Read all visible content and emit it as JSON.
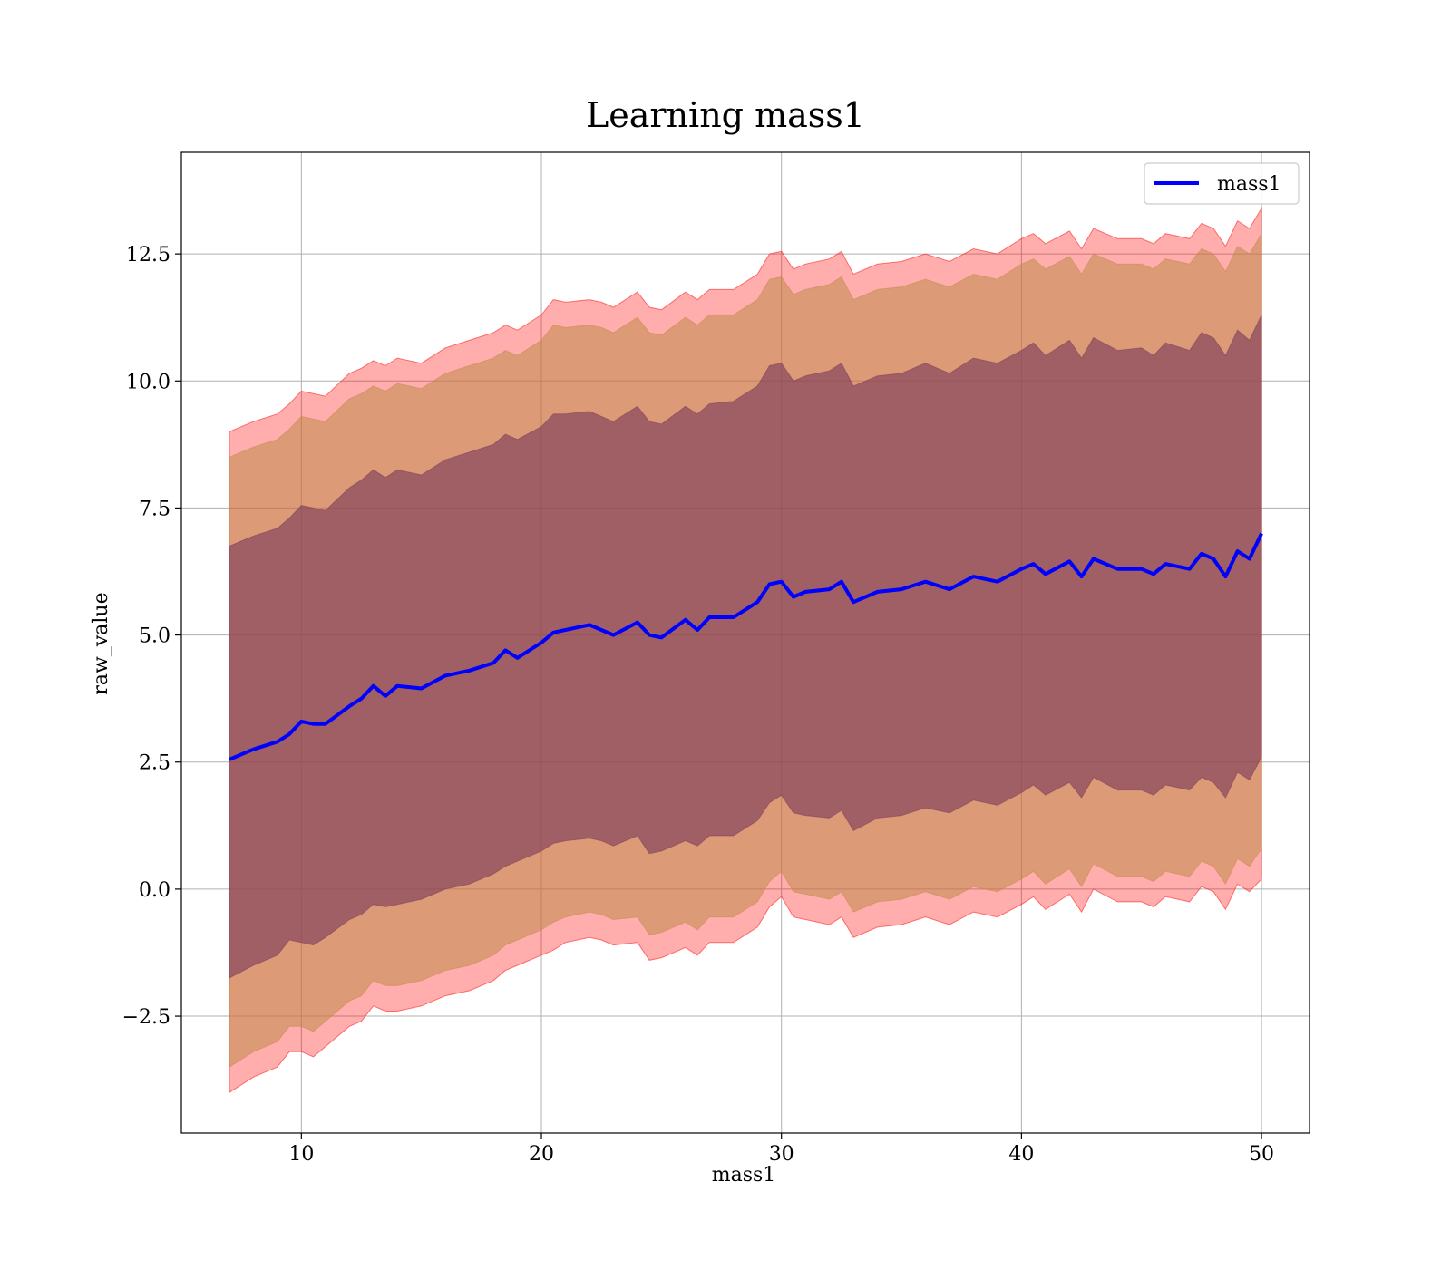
{
  "chart_data": {
    "type": "line",
    "title": "Learning mass1",
    "xlabel": "mass1",
    "ylabel": "raw_value",
    "xlim": [
      5,
      52
    ],
    "ylim": [
      -4.8,
      14.5
    ],
    "x_ticks": [
      10,
      20,
      30,
      40,
      50
    ],
    "x_tick_labels": [
      "10",
      "20",
      "30",
      "40",
      "50"
    ],
    "y_ticks": [
      -2.5,
      0.0,
      2.5,
      5.0,
      7.5,
      10.0,
      12.5
    ],
    "y_tick_labels": [
      "−2.5",
      "0.0",
      "2.5",
      "5.0",
      "7.5",
      "10.0",
      "12.5"
    ],
    "grid": true,
    "legend": {
      "placement": "upper right",
      "entries": [
        "mass1"
      ]
    },
    "x": [
      7,
      8,
      9,
      9.5,
      10,
      10.5,
      11,
      12,
      12.5,
      13,
      13.5,
      14,
      15,
      16,
      17,
      18,
      18.5,
      19,
      20,
      20.5,
      21,
      22,
      22.5,
      23,
      24,
      24.5,
      25,
      26,
      26.5,
      27,
      28,
      29,
      29.5,
      30,
      30.5,
      31,
      32,
      32.5,
      33,
      34,
      35,
      36,
      37,
      38,
      39,
      40,
      40.5,
      41,
      42,
      42.5,
      43,
      44,
      45,
      45.5,
      46,
      47,
      47.5,
      48,
      48.5,
      49,
      49.5,
      50
    ],
    "series": [
      {
        "name": "mass1",
        "color": "#0000ff",
        "values": [
          2.55,
          2.75,
          2.9,
          3.05,
          3.3,
          3.25,
          3.25,
          3.6,
          3.75,
          4.0,
          3.8,
          4.0,
          3.95,
          4.2,
          4.3,
          4.45,
          4.7,
          4.55,
          4.85,
          5.05,
          5.1,
          5.2,
          5.1,
          5.0,
          5.25,
          5.0,
          4.95,
          5.3,
          5.1,
          5.35,
          5.35,
          5.65,
          6.0,
          6.05,
          5.75,
          5.85,
          5.9,
          6.05,
          5.65,
          5.85,
          5.9,
          6.05,
          5.9,
          6.15,
          6.05,
          6.3,
          6.4,
          6.2,
          6.45,
          6.15,
          6.5,
          6.3,
          6.3,
          6.2,
          6.4,
          6.3,
          6.6,
          6.5,
          6.15,
          6.65,
          6.5,
          7.0
        ]
      }
    ],
    "bands": [
      {
        "name": "outer",
        "color": "#ff0000",
        "opacity": 0.32,
        "lower": [
          -4.0,
          -3.7,
          -3.5,
          -3.2,
          -3.2,
          -3.3,
          -3.1,
          -2.7,
          -2.6,
          -2.3,
          -2.4,
          -2.4,
          -2.3,
          -2.1,
          -2.0,
          -1.8,
          -1.6,
          -1.5,
          -1.3,
          -1.2,
          -1.05,
          -0.95,
          -1.0,
          -1.1,
          -1.05,
          -1.4,
          -1.35,
          -1.15,
          -1.3,
          -1.05,
          -1.05,
          -0.75,
          -0.35,
          -0.15,
          -0.55,
          -0.6,
          -0.7,
          -0.55,
          -0.95,
          -0.75,
          -0.7,
          -0.55,
          -0.7,
          -0.45,
          -0.55,
          -0.3,
          -0.15,
          -0.4,
          -0.1,
          -0.45,
          0.0,
          -0.25,
          -0.25,
          -0.35,
          -0.15,
          -0.25,
          0.05,
          -0.05,
          -0.4,
          0.1,
          -0.05,
          0.2
        ],
        "upper": [
          9.0,
          9.2,
          9.35,
          9.55,
          9.8,
          9.75,
          9.7,
          10.15,
          10.25,
          10.4,
          10.3,
          10.45,
          10.35,
          10.65,
          10.8,
          10.95,
          11.1,
          11.0,
          11.3,
          11.6,
          11.55,
          11.6,
          11.55,
          11.45,
          11.75,
          11.45,
          11.4,
          11.75,
          11.6,
          11.8,
          11.8,
          12.1,
          12.5,
          12.55,
          12.2,
          12.3,
          12.4,
          12.55,
          12.1,
          12.3,
          12.35,
          12.5,
          12.35,
          12.6,
          12.5,
          12.8,
          12.9,
          12.7,
          12.95,
          12.6,
          13.0,
          12.8,
          12.8,
          12.7,
          12.9,
          12.8,
          13.1,
          13.0,
          12.65,
          13.15,
          13.0,
          13.4
        ]
      },
      {
        "name": "middle",
        "color": "#c18a4a",
        "opacity": 0.55,
        "lower": [
          -3.5,
          -3.2,
          -3.0,
          -2.7,
          -2.7,
          -2.8,
          -2.6,
          -2.2,
          -2.1,
          -1.8,
          -1.9,
          -1.9,
          -1.8,
          -1.6,
          -1.5,
          -1.3,
          -1.1,
          -1.0,
          -0.8,
          -0.65,
          -0.55,
          -0.45,
          -0.5,
          -0.6,
          -0.55,
          -0.9,
          -0.85,
          -0.65,
          -0.8,
          -0.55,
          -0.55,
          -0.25,
          0.15,
          0.35,
          -0.05,
          -0.1,
          -0.2,
          -0.05,
          -0.45,
          -0.25,
          -0.2,
          -0.05,
          -0.2,
          0.05,
          -0.05,
          0.2,
          0.35,
          0.1,
          0.4,
          0.05,
          0.5,
          0.25,
          0.25,
          0.15,
          0.35,
          0.25,
          0.55,
          0.45,
          0.1,
          0.6,
          0.45,
          0.8
        ],
        "upper": [
          8.5,
          8.7,
          8.85,
          9.05,
          9.3,
          9.25,
          9.2,
          9.65,
          9.75,
          9.9,
          9.8,
          9.95,
          9.85,
          10.15,
          10.3,
          10.45,
          10.6,
          10.5,
          10.8,
          11.1,
          11.05,
          11.1,
          11.05,
          10.95,
          11.25,
          10.95,
          10.9,
          11.25,
          11.1,
          11.3,
          11.3,
          11.6,
          12.0,
          12.05,
          11.7,
          11.8,
          11.9,
          12.05,
          11.6,
          11.8,
          11.85,
          12.0,
          11.85,
          12.1,
          12.0,
          12.3,
          12.4,
          12.2,
          12.45,
          12.1,
          12.5,
          12.3,
          12.3,
          12.2,
          12.4,
          12.3,
          12.6,
          12.5,
          12.15,
          12.65,
          12.5,
          12.9
        ]
      },
      {
        "name": "inner",
        "color": "#7a3a5a",
        "opacity": 0.62,
        "lower": [
          -1.75,
          -1.5,
          -1.3,
          -1.0,
          -1.05,
          -1.1,
          -0.95,
          -0.6,
          -0.5,
          -0.3,
          -0.35,
          -0.3,
          -0.2,
          0.0,
          0.1,
          0.3,
          0.45,
          0.55,
          0.75,
          0.9,
          0.95,
          1.0,
          0.95,
          0.85,
          1.05,
          0.7,
          0.75,
          0.95,
          0.85,
          1.05,
          1.05,
          1.35,
          1.7,
          1.85,
          1.5,
          1.45,
          1.4,
          1.55,
          1.15,
          1.4,
          1.45,
          1.6,
          1.5,
          1.75,
          1.65,
          1.9,
          2.05,
          1.85,
          2.1,
          1.8,
          2.2,
          1.95,
          1.95,
          1.85,
          2.05,
          1.95,
          2.2,
          2.1,
          1.8,
          2.3,
          2.15,
          2.6
        ],
        "upper": [
          6.75,
          6.95,
          7.1,
          7.3,
          7.55,
          7.5,
          7.45,
          7.9,
          8.05,
          8.25,
          8.1,
          8.25,
          8.15,
          8.45,
          8.6,
          8.75,
          8.95,
          8.85,
          9.1,
          9.35,
          9.35,
          9.4,
          9.3,
          9.2,
          9.5,
          9.2,
          9.15,
          9.5,
          9.35,
          9.55,
          9.6,
          9.9,
          10.3,
          10.35,
          10.0,
          10.1,
          10.2,
          10.35,
          9.9,
          10.1,
          10.15,
          10.35,
          10.15,
          10.45,
          10.35,
          10.6,
          10.75,
          10.5,
          10.8,
          10.45,
          10.85,
          10.6,
          10.65,
          10.5,
          10.75,
          10.6,
          10.95,
          10.85,
          10.5,
          11.0,
          10.8,
          11.3
        ]
      }
    ]
  }
}
